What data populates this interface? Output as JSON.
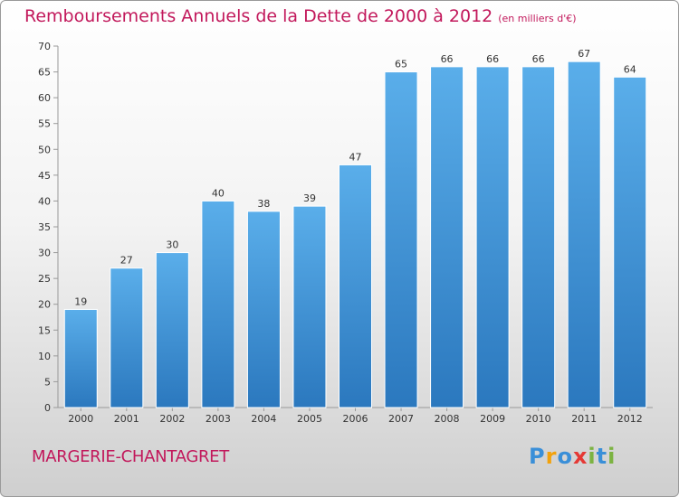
{
  "title": "Remboursements Annuels de la Dette de 2000 à 2012",
  "subtitle": "(en milliers d'€)",
  "commune": "MARGERIE-CHANTAGRET",
  "logo": {
    "text": "Proxiti",
    "letters": [
      "P",
      "r",
      "o",
      "x",
      "i",
      "t",
      "i"
    ],
    "colors": [
      "#3a8fd8",
      "#f2a20c",
      "#3a8fd8",
      "#e53935",
      "#7cb342",
      "#3a8fd8",
      "#7cb342"
    ]
  },
  "chart_data": {
    "type": "bar",
    "title": "Remboursements Annuels de la Dette de 2000 à 2012",
    "subtitle": "(en milliers d'€)",
    "xlabel": "",
    "ylabel": "",
    "categories": [
      "2000",
      "2001",
      "2002",
      "2003",
      "2004",
      "2005",
      "2006",
      "2007",
      "2008",
      "2009",
      "2010",
      "2011",
      "2012"
    ],
    "values": [
      19,
      27,
      30,
      40,
      38,
      39,
      47,
      65,
      66,
      66,
      66,
      67,
      64
    ],
    "ylim": [
      0,
      70
    ],
    "yticks": [
      0,
      5,
      10,
      15,
      20,
      25,
      30,
      35,
      40,
      45,
      50,
      55,
      60,
      65,
      70
    ],
    "grid": false,
    "legend": "none",
    "colors": {
      "bar_top": "#5aaeea",
      "bar_bottom": "#2b78be",
      "label": "#333333",
      "axis": "#999999"
    }
  }
}
